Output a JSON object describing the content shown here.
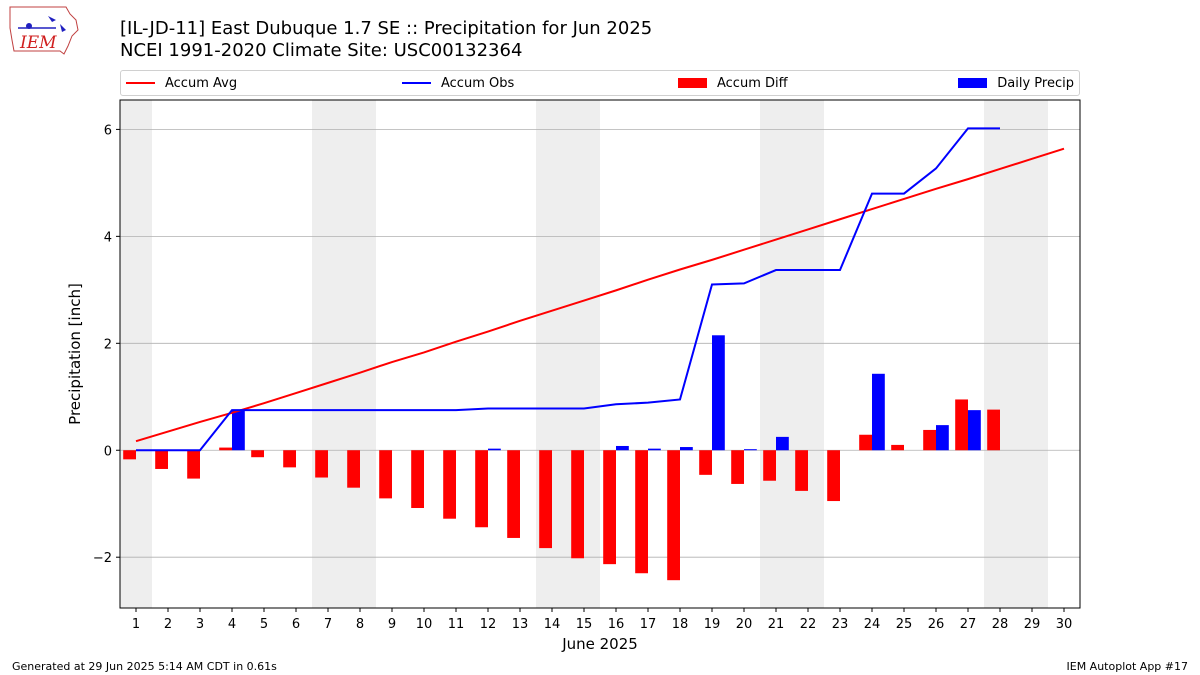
{
  "header": {
    "logo_text": "IEM",
    "title_line1": "[IL-JD-11] East Dubuque 1.7 SE :: Precipitation for Jun 2025",
    "title_line2": "NCEI 1991-2020 Climate Site: USC00132364"
  },
  "legend": [
    {
      "label": "Accum Avg",
      "kind": "line",
      "color": "#ff0000"
    },
    {
      "label": "Accum Obs",
      "kind": "line",
      "color": "#0000ff"
    },
    {
      "label": "Accum Diff",
      "kind": "bar",
      "color": "#ff0000"
    },
    {
      "label": "Daily Precip",
      "kind": "bar",
      "color": "#0000ff"
    }
  ],
  "footer": {
    "generated": "Generated at 29 Jun 2025 5:14 AM CDT in 0.61s",
    "app": "IEM Autoplot App #17"
  },
  "chart_data": {
    "type": "bar",
    "title": "[IL-JD-11] East Dubuque 1.7 SE :: Precipitation for Jun 2025",
    "subtitle": "NCEI 1991-2020 Climate Site: USC00132364",
    "xlabel": "June 2025",
    "ylabel": "Precipitation [inch]",
    "xlim": [
      0.5,
      30.5
    ],
    "ylim": [
      -2.95,
      6.55
    ],
    "yticks": [
      -2,
      0,
      2,
      4,
      6
    ],
    "grid": "y",
    "legend_position": "top",
    "days": [
      1,
      2,
      3,
      4,
      5,
      6,
      7,
      8,
      9,
      10,
      11,
      12,
      13,
      14,
      15,
      16,
      17,
      18,
      19,
      20,
      21,
      22,
      23,
      24,
      25,
      26,
      27,
      28,
      29,
      30
    ],
    "weekend_bands": [
      [
        0.5,
        1.5
      ],
      [
        6.5,
        8.5
      ],
      [
        13.5,
        15.5
      ],
      [
        20.5,
        22.5
      ],
      [
        27.5,
        29.5
      ]
    ],
    "colors": {
      "avg": "#ff0000",
      "obs": "#0000ff",
      "diff": "#ff0000",
      "daily": "#0000ff",
      "weekend": "#eeeeee",
      "grid": "#b0b0b0"
    },
    "series": [
      {
        "name": "Accum Avg",
        "kind": "line",
        "values": [
          0.17,
          0.35,
          0.53,
          0.7,
          0.88,
          1.07,
          1.26,
          1.45,
          1.65,
          1.83,
          2.03,
          2.22,
          2.42,
          2.61,
          2.8,
          2.99,
          3.19,
          3.38,
          3.56,
          3.75,
          3.94,
          4.13,
          4.32,
          4.51,
          4.7,
          4.89,
          5.07,
          5.26,
          5.45,
          5.64
        ]
      },
      {
        "name": "Accum Obs",
        "kind": "line",
        "days": [
          1,
          2,
          3,
          4,
          5,
          6,
          7,
          8,
          9,
          10,
          11,
          12,
          13,
          14,
          15,
          16,
          17,
          18,
          19,
          20,
          21,
          22,
          23,
          24,
          25,
          26,
          27,
          28
        ],
        "values": [
          0.0,
          0.0,
          0.0,
          0.75,
          0.75,
          0.75,
          0.75,
          0.75,
          0.75,
          0.75,
          0.75,
          0.78,
          0.78,
          0.78,
          0.78,
          0.86,
          0.89,
          0.95,
          3.1,
          3.12,
          3.37,
          3.37,
          3.37,
          4.8,
          4.8,
          5.27,
          6.02,
          6.02
        ]
      },
      {
        "name": "Accum Diff",
        "kind": "bar",
        "days": [
          1,
          2,
          3,
          4,
          5,
          6,
          7,
          8,
          9,
          10,
          11,
          12,
          13,
          14,
          15,
          16,
          17,
          18,
          19,
          20,
          21,
          22,
          23,
          24,
          25,
          26,
          27,
          28
        ],
        "values": [
          -0.17,
          -0.35,
          -0.53,
          0.05,
          -0.13,
          -0.32,
          -0.51,
          -0.7,
          -0.9,
          -1.08,
          -1.28,
          -1.44,
          -1.64,
          -1.83,
          -2.02,
          -2.13,
          -2.3,
          -2.43,
          -0.46,
          -0.63,
          -0.57,
          -0.76,
          -0.95,
          0.29,
          0.1,
          0.38,
          0.95,
          0.76
        ]
      },
      {
        "name": "Daily Precip",
        "kind": "bar",
        "days": [
          4,
          12,
          16,
          17,
          18,
          19,
          20,
          21,
          24,
          26,
          27
        ],
        "values": [
          0.75,
          0.03,
          0.08,
          0.03,
          0.06,
          2.15,
          0.02,
          0.25,
          1.43,
          0.47,
          0.75
        ]
      }
    ]
  }
}
